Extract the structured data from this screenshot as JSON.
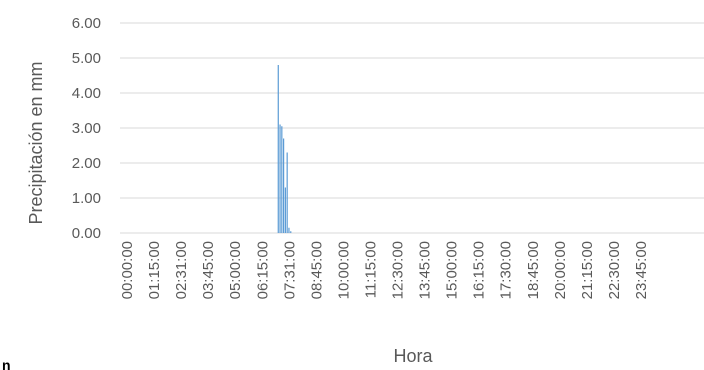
{
  "chart_data": {
    "type": "bar",
    "title": "",
    "xlabel": "Hora",
    "ylabel": "Precipitación en mm",
    "ylim": [
      0,
      6
    ],
    "y_ticks": [
      "0.00",
      "1.00",
      "2.00",
      "3.00",
      "4.00",
      "5.00",
      "6.00"
    ],
    "x_tick_labels": [
      "00:00:00",
      "01:15:00",
      "02:31:00",
      "03:45:00",
      "05:00:00",
      "06:15:00",
      "07:31:00",
      "08:45:00",
      "10:00:00",
      "11:15:00",
      "12:30:00",
      "13:45:00",
      "15:00:00",
      "16:15:00",
      "17:30:00",
      "18:45:00",
      "20:00:00",
      "21:15:00",
      "22:30:00",
      "23:45:00"
    ],
    "grid": true,
    "legend": "none",
    "color": "#5b9bd5",
    "series": [
      {
        "x": [
          "07:00:00",
          "07:05:00",
          "07:10:00",
          "07:15:00",
          "07:20:00",
          "07:25:00",
          "07:30:00",
          "07:35:00"
        ],
        "values": [
          4.8,
          3.1,
          3.05,
          2.7,
          1.3,
          2.3,
          0.15,
          0.05
        ]
      }
    ]
  },
  "corner_mark": "n"
}
